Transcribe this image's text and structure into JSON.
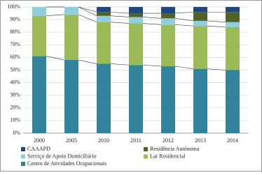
{
  "chart_data": {
    "type": "stacked_bar",
    "categories": [
      "2000",
      "2005",
      "2010",
      "2011",
      "2012",
      "2013",
      "2014"
    ],
    "series": [
      {
        "name": "Centro de Atividades Ocupacionais",
        "color": "#31849b",
        "values": [
          61,
          58,
          55,
          54,
          53,
          51,
          50
        ]
      },
      {
        "name": "Lar Residencial",
        "color": "#9bbb59",
        "values": [
          32,
          36,
          33,
          33,
          33,
          34,
          34
        ]
      },
      {
        "name": "Serviço de Apoio Domiciliário",
        "color": "#92cddc",
        "values": [
          7,
          6,
          5,
          5,
          5,
          4,
          4
        ]
      },
      {
        "name": "Residência Autónoma",
        "color": "#4f6228",
        "values": [
          0,
          0,
          3,
          3,
          4,
          7,
          8
        ]
      },
      {
        "name": "CAAAPD",
        "color": "#1f497d",
        "values": [
          0,
          0,
          4,
          5,
          5,
          4,
          4
        ]
      }
    ],
    "ylim": [
      0,
      100
    ],
    "yticks": [
      {
        "value": 0,
        "label": "0%"
      },
      {
        "value": 10,
        "label": "10%"
      },
      {
        "value": 20,
        "label": "20%"
      },
      {
        "value": 30,
        "label": "30%"
      },
      {
        "value": 40,
        "label": "40%"
      },
      {
        "value": 50,
        "label": "50%"
      },
      {
        "value": 60,
        "label": "60%"
      },
      {
        "value": 70,
        "label": "70%"
      },
      {
        "value": 80,
        "label": "80%"
      },
      {
        "value": 90,
        "label": "90%"
      },
      {
        "value": 100,
        "label": "100%"
      }
    ],
    "grid": true,
    "legend": "bottom"
  }
}
